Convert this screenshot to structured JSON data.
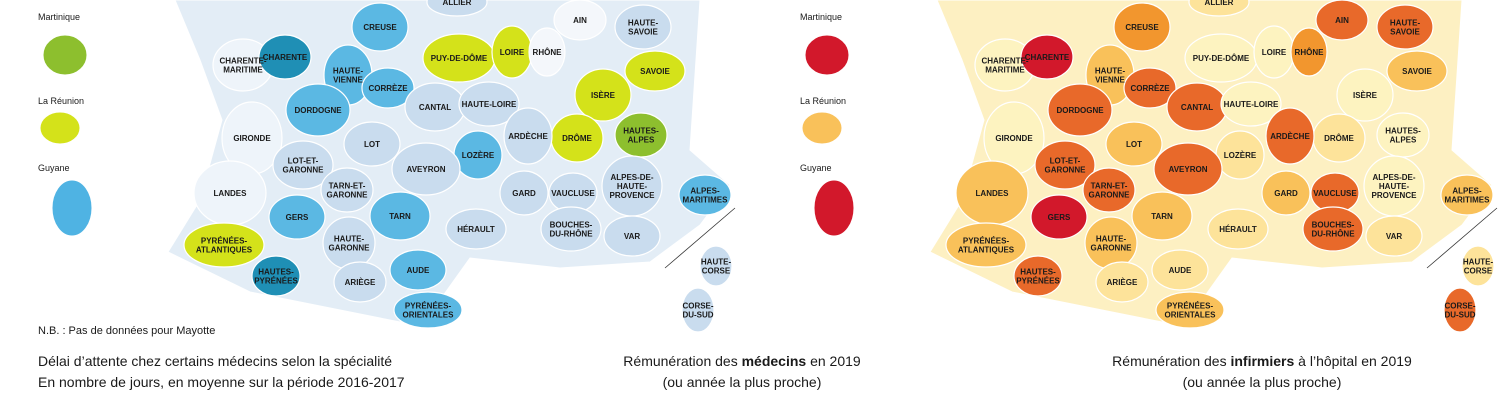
{
  "maps": [
    {
      "overseas": [
        {
          "name": "Martinique",
          "color": "#8dbf2e"
        },
        {
          "name": "La Réunion",
          "color": "#d4e21a"
        },
        {
          "name": "Guyane",
          "color": "#4fb3e3"
        }
      ],
      "base_color": "#e3edf6",
      "departments": [
        {
          "lines": [
            "ALLIER"
          ],
          "color": "#c9dcee"
        },
        {
          "lines": [
            "CHARENTE-",
            "MARITIME"
          ],
          "color": "#eef4fa"
        },
        {
          "lines": [
            "CHARENTE"
          ],
          "color": "#1f8fb5"
        },
        {
          "lines": [
            "HAUTE-",
            "VIENNE"
          ],
          "color": "#5bb8e3"
        },
        {
          "lines": [
            "CREUSE"
          ],
          "color": "#5bb8e3"
        },
        {
          "lines": [
            "CORRÈZE"
          ],
          "color": "#5bb8e3"
        },
        {
          "lines": [
            "DORDOGNE"
          ],
          "color": "#5bb8e3"
        },
        {
          "lines": [
            "GIRONDE"
          ],
          "color": "#eef4fa"
        },
        {
          "lines": [
            "LOT"
          ],
          "color": "#c9dcee"
        },
        {
          "lines": [
            "CANTAL"
          ],
          "color": "#c9dcee"
        },
        {
          "lines": [
            "HAUTE-LOIRE"
          ],
          "color": "#c9dcee"
        },
        {
          "lines": [
            "PUY-DE-DÔME"
          ],
          "color": "#d4e21a"
        },
        {
          "lines": [
            "LOIRE"
          ],
          "color": "#d4e21a"
        },
        {
          "lines": [
            "RHÔNE"
          ],
          "color": "#f4f7fb"
        },
        {
          "lines": [
            "AIN"
          ],
          "color": "#f4f7fb"
        },
        {
          "lines": [
            "HAUTE-",
            "SAVOIE"
          ],
          "color": "#c9dcee"
        },
        {
          "lines": [
            "SAVOIE"
          ],
          "color": "#d4e21a"
        },
        {
          "lines": [
            "ISÈRE"
          ],
          "color": "#d4e21a"
        },
        {
          "lines": [
            "DRÔME"
          ],
          "color": "#d4e21a"
        },
        {
          "lines": [
            "HAUTES-",
            "ALPES"
          ],
          "color": "#8dbf2e"
        },
        {
          "lines": [
            "ARDÈCHE"
          ],
          "color": "#c9dcee"
        },
        {
          "lines": [
            "LOZÈRE"
          ],
          "color": "#5bb8e3"
        },
        {
          "lines": [
            "AVEYRON"
          ],
          "color": "#c9dcee"
        },
        {
          "lines": [
            "LOT-ET-",
            "GARONNE"
          ],
          "color": "#c9dcee"
        },
        {
          "lines": [
            "LANDES"
          ],
          "color": "#eef4fa"
        },
        {
          "lines": [
            "TARN-ET-",
            "GARONNE"
          ],
          "color": "#c9dcee"
        },
        {
          "lines": [
            "GARD"
          ],
          "color": "#c9dcee"
        },
        {
          "lines": [
            "VAUCLUSE"
          ],
          "color": "#c9dcee"
        },
        {
          "lines": [
            "ALPES-DE-",
            "HAUTE-",
            "PROVENCE"
          ],
          "color": "#c9dcee"
        },
        {
          "lines": [
            "ALPES-",
            "MARITIMES"
          ],
          "color": "#5bb8e3"
        },
        {
          "lines": [
            "GERS"
          ],
          "color": "#5bb8e3"
        },
        {
          "lines": [
            "TARN"
          ],
          "color": "#5bb8e3"
        },
        {
          "lines": [
            "HÉRAULT"
          ],
          "color": "#c9dcee"
        },
        {
          "lines": [
            "BOUCHES-",
            "DU-RHÔNE"
          ],
          "color": "#c9dcee"
        },
        {
          "lines": [
            "VAR"
          ],
          "color": "#c9dcee"
        },
        {
          "lines": [
            "HAUTE-",
            "GARONNE"
          ],
          "color": "#c9dcee"
        },
        {
          "lines": [
            "PYRÉNÉES-",
            "ATLANTIQUES"
          ],
          "color": "#d4e21a"
        },
        {
          "lines": [
            "HAUTES-",
            "PYRÉNÉES"
          ],
          "color": "#1f8fb5"
        },
        {
          "lines": [
            "ARIÈGE"
          ],
          "color": "#c9dcee"
        },
        {
          "lines": [
            "AUDE"
          ],
          "color": "#5bb8e3"
        },
        {
          "lines": [
            "PYRÉNÉES-",
            "ORIENTALES"
          ],
          "color": "#5bb8e3"
        },
        {
          "lines": [
            "HAUTE-",
            "CORSE"
          ],
          "color": "#c9dcee"
        },
        {
          "lines": [
            "CORSE-",
            "DU-SUD"
          ],
          "color": "#c9dcee"
        }
      ],
      "note": "N.B. : Pas de données pour Mayotte",
      "caption": {
        "title": [
          "Délai d’attente chez certains médecins selon la spécialité"
        ],
        "subtitle": "En nombre de jours, en moyenne sur la période 2016-2017"
      }
    },
    {
      "caption": {
        "title": [
          "Rémunération des ",
          "médecins",
          " en 2019"
        ],
        "subtitle": "(ou année la plus proche)"
      }
    },
    {
      "overseas": [
        {
          "name": "Martinique",
          "color": "#d2182b"
        },
        {
          "name": "La Réunion",
          "color": "#f9c15a"
        },
        {
          "name": "Guyane",
          "color": "#d2182b"
        }
      ],
      "base_color": "#fdf0c2",
      "departments": [
        {
          "lines": [
            "ALLIER"
          ],
          "color": "#fde39a"
        },
        {
          "lines": [
            "CHARENTE-",
            "MARITIME"
          ],
          "color": "#fdf3c0"
        },
        {
          "lines": [
            "CHARENTE"
          ],
          "color": "#d2182b"
        },
        {
          "lines": [
            "HAUTE-",
            "VIENNE"
          ],
          "color": "#f9c15a"
        },
        {
          "lines": [
            "CREUSE"
          ],
          "color": "#f2962e"
        },
        {
          "lines": [
            "CORRÈZE"
          ],
          "color": "#e8692a"
        },
        {
          "lines": [
            "DORDOGNE"
          ],
          "color": "#e8692a"
        },
        {
          "lines": [
            "GIRONDE"
          ],
          "color": "#fdf3c0"
        },
        {
          "lines": [
            "LOT"
          ],
          "color": "#f9c15a"
        },
        {
          "lines": [
            "CANTAL"
          ],
          "color": "#e8692a"
        },
        {
          "lines": [
            "HAUTE-LOIRE"
          ],
          "color": "#fdf3c0"
        },
        {
          "lines": [
            "PUY-DE-DÔME"
          ],
          "color": "#fdf3c0"
        },
        {
          "lines": [
            "LOIRE"
          ],
          "color": "#fdf3c0"
        },
        {
          "lines": [
            "RHÔNE"
          ],
          "color": "#f2962e"
        },
        {
          "lines": [
            "AIN"
          ],
          "color": "#e8692a"
        },
        {
          "lines": [
            "HAUTE-",
            "SAVOIE"
          ],
          "color": "#e8692a"
        },
        {
          "lines": [
            "SAVOIE"
          ],
          "color": "#f9c15a"
        },
        {
          "lines": [
            "ISÈRE"
          ],
          "color": "#fdf3c0"
        },
        {
          "lines": [
            "DRÔME"
          ],
          "color": "#fde39a"
        },
        {
          "lines": [
            "HAUTES-",
            "ALPES"
          ],
          "color": "#fdf3c0"
        },
        {
          "lines": [
            "ARDÈCHE"
          ],
          "color": "#e8692a"
        },
        {
          "lines": [
            "LOZÈRE"
          ],
          "color": "#fde39a"
        },
        {
          "lines": [
            "AVEYRON"
          ],
          "color": "#e8692a"
        },
        {
          "lines": [
            "LOT-ET-",
            "GARONNE"
          ],
          "color": "#e8692a"
        },
        {
          "lines": [
            "LANDES"
          ],
          "color": "#f9c15a"
        },
        {
          "lines": [
            "TARN-ET-",
            "GARONNE"
          ],
          "color": "#e8692a"
        },
        {
          "lines": [
            "GARD"
          ],
          "color": "#f9c15a"
        },
        {
          "lines": [
            "VAUCLUSE"
          ],
          "color": "#e8692a"
        },
        {
          "lines": [
            "ALPES-DE-",
            "HAUTE-",
            "PROVENCE"
          ],
          "color": "#fdf3c0"
        },
        {
          "lines": [
            "ALPES-",
            "MARITIMES"
          ],
          "color": "#f9c15a"
        },
        {
          "lines": [
            "GERS"
          ],
          "color": "#d2182b"
        },
        {
          "lines": [
            "TARN"
          ],
          "color": "#f9c15a"
        },
        {
          "lines": [
            "HÉRAULT"
          ],
          "color": "#fde39a"
        },
        {
          "lines": [
            "BOUCHES-",
            "DU-RHÔNE"
          ],
          "color": "#e8692a"
        },
        {
          "lines": [
            "VAR"
          ],
          "color": "#fde39a"
        },
        {
          "lines": [
            "HAUTE-",
            "GARONNE"
          ],
          "color": "#f9c15a"
        },
        {
          "lines": [
            "PYRÉNÉES-",
            "ATLANTIQUES"
          ],
          "color": "#f9c15a"
        },
        {
          "lines": [
            "HAUTES-",
            "PYRÉNÉES"
          ],
          "color": "#e8692a"
        },
        {
          "lines": [
            "ARIÈGE"
          ],
          "color": "#fde39a"
        },
        {
          "lines": [
            "AUDE"
          ],
          "color": "#fde39a"
        },
        {
          "lines": [
            "PYRÉNÉES-",
            "ORIENTALES"
          ],
          "color": "#f9c15a"
        },
        {
          "lines": [
            "HAUTE-",
            "CORSE"
          ],
          "color": "#fde39a"
        },
        {
          "lines": [
            "CORSE-",
            "DU-SUD"
          ],
          "color": "#e8692a"
        }
      ],
      "caption": {
        "title": [
          "Rémunération des ",
          "infirmiers",
          " à l’hôpital en 2019"
        ],
        "subtitle": "(ou année la plus proche)"
      }
    }
  ]
}
